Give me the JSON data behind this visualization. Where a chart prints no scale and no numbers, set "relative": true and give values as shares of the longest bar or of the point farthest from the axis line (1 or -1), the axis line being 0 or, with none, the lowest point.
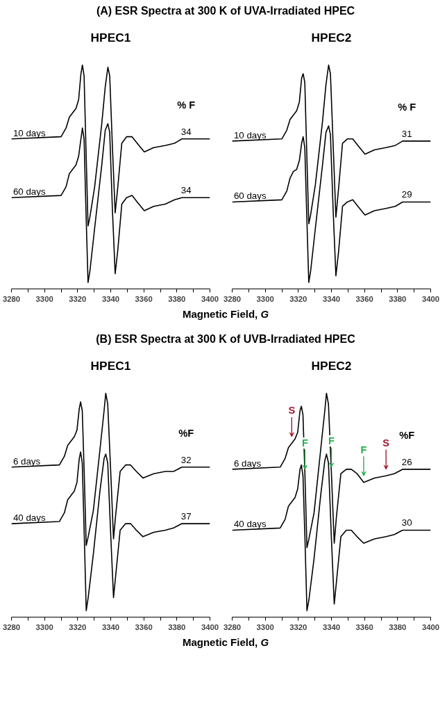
{
  "chart_data": [
    {
      "type": "line",
      "title": "(A) ESR Spectra at 300 K of UVA-Irradiated HPEC",
      "subtitle": "HPEC1",
      "xlabel": "Magnetic Field, G",
      "relative": true,
      "xlim": [
        3280,
        3400
      ],
      "xticks": [
        3280,
        {
          "value": 3290,
          "label": null
        },
        3300,
        {
          "value": 3310,
          "label": null
        },
        3320,
        {
          "value": 3330,
          "label": null
        },
        3340,
        {
          "value": 3350,
          "label": null
        },
        3360,
        {
          "value": 3370,
          "label": null
        },
        3380,
        {
          "value": 3390,
          "label": null
        },
        3400
      ],
      "grid": false,
      "legend": false,
      "x": [
        3280,
        3310,
        3313,
        3315,
        3317,
        3319,
        3320.6,
        3322,
        3322.9,
        3323.9,
        3325,
        3326.3,
        3327.4,
        3330.3,
        3334.6,
        3336.7,
        3338.3,
        3339.4,
        3341,
        3342.7,
        3344.3,
        3346.7,
        3349.6,
        3352.9,
        3356,
        3360.3,
        3366,
        3373,
        3378.6,
        3383,
        3400
      ],
      "series": [
        {
          "name": "10 days",
          "color": "#000000",
          "values": [
            0.66,
            0.67,
            0.71,
            0.76,
            0.78,
            0.8,
            0.84,
            0.96,
            1.0,
            0.95,
            0.63,
            0.26,
            0.3,
            0.44,
            0.73,
            0.9,
            0.99,
            0.95,
            0.63,
            0.32,
            0.44,
            0.64,
            0.67,
            0.67,
            0.64,
            0.6,
            0.62,
            0.63,
            0.64,
            0.66,
            0.66
          ]
        },
        {
          "name": "60 days",
          "color": "#000000",
          "values": [
            0.39,
            0.4,
            0.44,
            0.5,
            0.52,
            0.54,
            0.58,
            0.66,
            0.71,
            0.66,
            0.34,
            0.0,
            0.05,
            0.25,
            0.54,
            0.7,
            0.73,
            0.69,
            0.34,
            0.04,
            0.15,
            0.36,
            0.39,
            0.4,
            0.37,
            0.33,
            0.35,
            0.36,
            0.38,
            0.39,
            0.39
          ]
        }
      ],
      "annotations": [
        "% F",
        "34",
        "34"
      ]
    },
    {
      "type": "line",
      "subtitle": "HPEC2",
      "relative": true,
      "xlim": [
        3280,
        3400
      ],
      "xticks": [
        3280,
        {
          "value": 3290,
          "label": null
        },
        3300,
        {
          "value": 3310,
          "label": null
        },
        3320,
        {
          "value": 3330,
          "label": null
        },
        3340,
        {
          "value": 3350,
          "label": null
        },
        3360,
        {
          "value": 3370,
          "label": null
        },
        3380,
        {
          "value": 3390,
          "label": null
        },
        3400
      ],
      "grid": false,
      "legend": false,
      "x": [
        3280,
        3310,
        3313,
        3315,
        3317,
        3319,
        3320.6,
        3322,
        3322.9,
        3323.9,
        3325,
        3326.3,
        3327.4,
        3330.3,
        3334.6,
        3336.7,
        3338.3,
        3339.4,
        3341,
        3342.7,
        3344.3,
        3346.7,
        3349.6,
        3352.9,
        3356,
        3360.3,
        3366,
        3373,
        3378.6,
        3383,
        3400
      ],
      "series": [
        {
          "name": "10 days",
          "color": "#000000",
          "values": [
            0.65,
            0.66,
            0.7,
            0.75,
            0.77,
            0.79,
            0.83,
            0.94,
            0.96,
            0.92,
            0.62,
            0.27,
            0.31,
            0.45,
            0.74,
            0.91,
            1.0,
            0.96,
            0.64,
            0.3,
            0.43,
            0.64,
            0.66,
            0.66,
            0.63,
            0.59,
            0.61,
            0.62,
            0.63,
            0.65,
            0.65
          ]
        },
        {
          "name": "60 days",
          "color": "#000000",
          "values": [
            0.37,
            0.38,
            0.42,
            0.48,
            0.51,
            0.52,
            0.56,
            0.64,
            0.67,
            0.62,
            0.33,
            0.0,
            0.05,
            0.25,
            0.54,
            0.69,
            0.72,
            0.68,
            0.34,
            0.03,
            0.14,
            0.35,
            0.37,
            0.38,
            0.35,
            0.31,
            0.33,
            0.34,
            0.35,
            0.37,
            0.37
          ]
        }
      ],
      "annotations": [
        "% F",
        "31",
        "29"
      ]
    },
    {
      "type": "line",
      "title": "(B) ESR Spectra at 300 K of UVB-Irradiated HPEC",
      "subtitle": "HPEC1",
      "xlabel": "Magnetic Field, G",
      "relative": true,
      "xlim": [
        3280,
        3400
      ],
      "xticks": [
        3280,
        {
          "value": 3290,
          "label": null
        },
        3300,
        {
          "value": 3310,
          "label": null
        },
        3320,
        {
          "value": 3330,
          "label": null
        },
        3340,
        {
          "value": 3350,
          "label": null
        },
        3360,
        {
          "value": 3370,
          "label": null
        },
        3380,
        {
          "value": 3390,
          "label": null
        },
        3400
      ],
      "grid": false,
      "legend": false,
      "x": [
        3280,
        3309,
        3312,
        3314,
        3316,
        3318,
        3319.6,
        3321,
        3321.8,
        3322.8,
        3324,
        3325.2,
        3326.4,
        3329.5,
        3333.5,
        3336,
        3337,
        3338.2,
        3340,
        3341.7,
        3343,
        3345.7,
        3349,
        3352,
        3355.5,
        3359.5,
        3366,
        3373,
        3378,
        3383,
        3400
      ],
      "series": [
        {
          "name": "6 days",
          "color": "#000000",
          "values": [
            0.66,
            0.67,
            0.71,
            0.76,
            0.78,
            0.8,
            0.83,
            0.93,
            0.96,
            0.92,
            0.63,
            0.3,
            0.34,
            0.46,
            0.74,
            0.92,
            1.0,
            0.95,
            0.64,
            0.33,
            0.44,
            0.64,
            0.67,
            0.67,
            0.64,
            0.61,
            0.63,
            0.64,
            0.64,
            0.66,
            0.66
          ]
        },
        {
          "name": "40 days",
          "color": "#000000",
          "values": [
            0.4,
            0.41,
            0.45,
            0.51,
            0.53,
            0.55,
            0.59,
            0.7,
            0.73,
            0.68,
            0.35,
            0.0,
            0.06,
            0.26,
            0.55,
            0.7,
            0.72,
            0.68,
            0.35,
            0.06,
            0.16,
            0.37,
            0.4,
            0.4,
            0.37,
            0.34,
            0.36,
            0.37,
            0.38,
            0.4,
            0.4
          ]
        }
      ],
      "annotations": [
        "%F",
        "32",
        "37"
      ]
    },
    {
      "type": "line",
      "subtitle": "HPEC2",
      "relative": true,
      "xlim": [
        3280,
        3400
      ],
      "xticks": [
        3280,
        {
          "value": 3290,
          "label": null
        },
        3300,
        {
          "value": 3310,
          "label": null
        },
        3320,
        {
          "value": 3330,
          "label": null
        },
        3340,
        {
          "value": 3350,
          "label": null
        },
        3360,
        {
          "value": 3370,
          "label": null
        },
        3380,
        {
          "value": 3390,
          "label": null
        },
        3400
      ],
      "grid": false,
      "legend": false,
      "x": [
        3280,
        3309,
        3312,
        3314,
        3316,
        3318,
        3319.6,
        3321,
        3321.8,
        3322.8,
        3324,
        3325.2,
        3326.4,
        3329.5,
        3333.5,
        3336,
        3337,
        3338.2,
        3340,
        3341.7,
        3343,
        3345.7,
        3349,
        3352,
        3355.5,
        3359.5,
        3366,
        3373,
        3378,
        3383,
        3400
      ],
      "series": [
        {
          "name": "6 days",
          "color": "#000000",
          "values": [
            0.65,
            0.66,
            0.7,
            0.75,
            0.77,
            0.79,
            0.82,
            0.92,
            0.94,
            0.9,
            0.62,
            0.29,
            0.33,
            0.45,
            0.74,
            0.92,
            1.0,
            0.95,
            0.63,
            0.31,
            0.43,
            0.63,
            0.65,
            0.65,
            0.63,
            0.59,
            0.61,
            0.62,
            0.63,
            0.65,
            0.65
          ]
        },
        {
          "name": "40 days",
          "color": "#000000",
          "values": [
            0.37,
            0.38,
            0.42,
            0.48,
            0.5,
            0.52,
            0.56,
            0.65,
            0.67,
            0.62,
            0.33,
            0.0,
            0.05,
            0.24,
            0.53,
            0.69,
            0.72,
            0.68,
            0.33,
            0.03,
            0.13,
            0.34,
            0.37,
            0.37,
            0.34,
            0.31,
            0.33,
            0.34,
            0.35,
            0.37,
            0.37
          ]
        }
      ],
      "annotations": [
        {
          "text": "S",
          "x": 3316,
          "y": 0.77
        },
        {
          "text": "F",
          "x": 3324,
          "y": 0.62
        },
        {
          "text": "F",
          "x": 3340,
          "y": 0.63
        },
        {
          "text": "F",
          "x": 3359.5,
          "y": 0.59
        },
        {
          "text": "S",
          "x": 3373,
          "y": 0.62
        },
        "%F",
        "26",
        "30"
      ]
    }
  ]
}
